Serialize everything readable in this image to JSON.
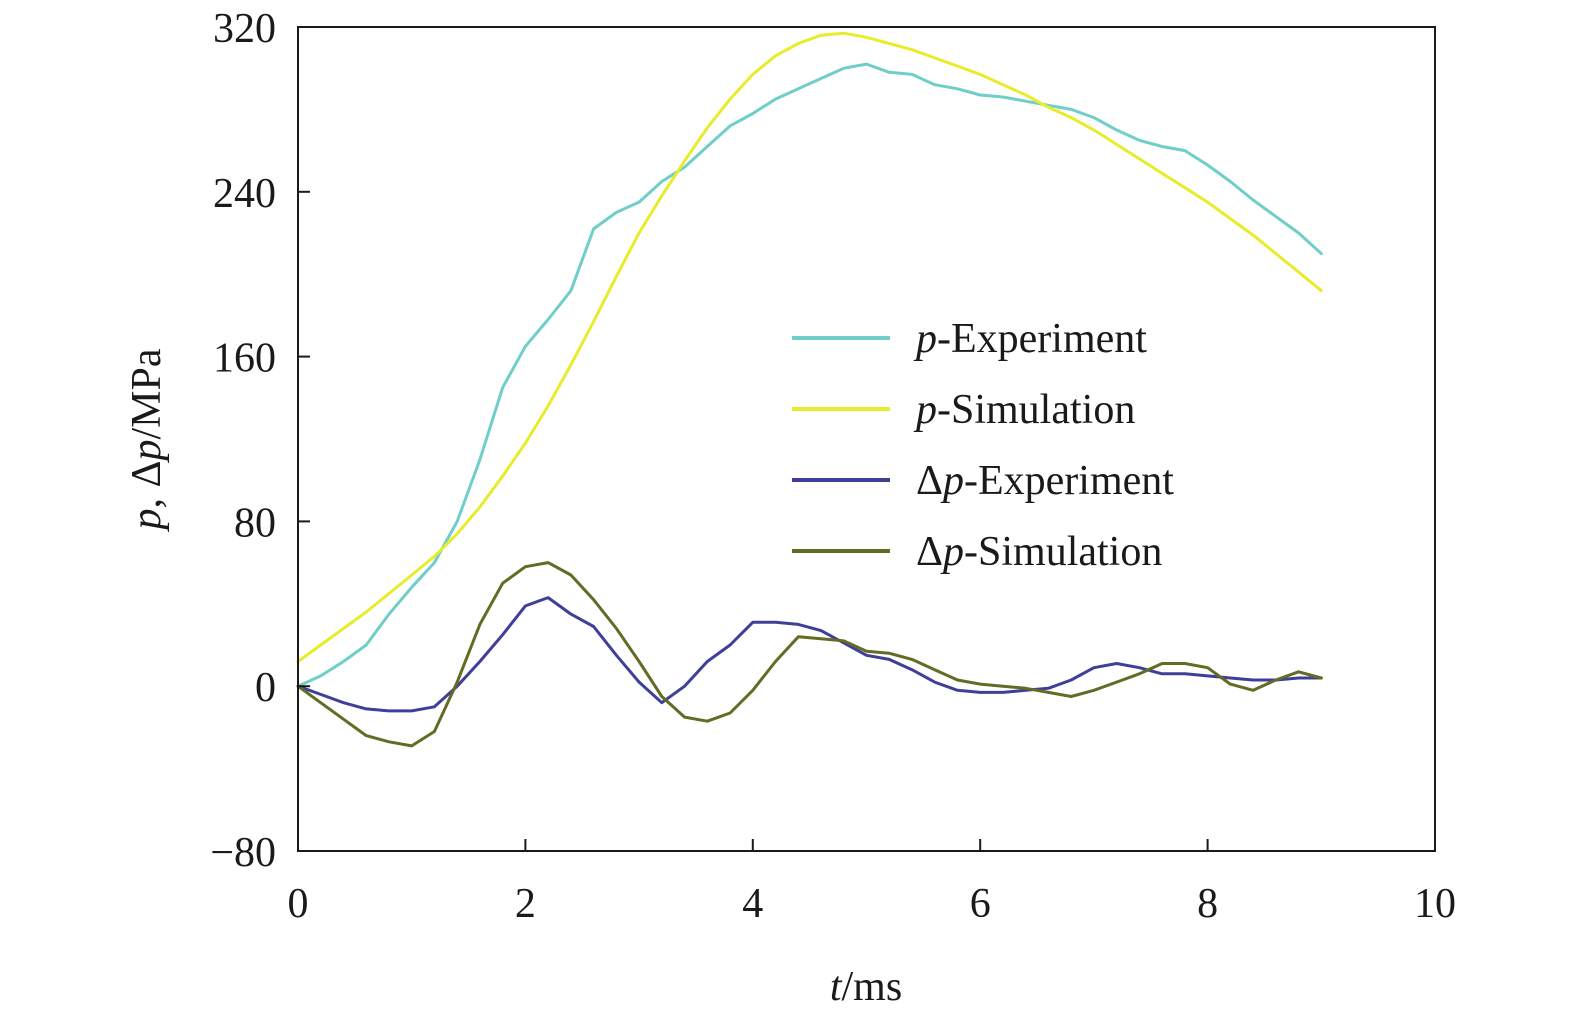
{
  "chart_data": {
    "type": "line",
    "xlabel": {
      "italic": "t",
      "rest": "/ms"
    },
    "ylabel": {
      "i1": "p",
      "t1": ", Δ",
      "i2": "p",
      "t2": "/MPa"
    },
    "xlim": [
      0,
      10
    ],
    "ylim": [
      -80,
      320
    ],
    "xticks": [
      "0",
      "2",
      "4",
      "6",
      "8",
      "10"
    ],
    "yticks": [
      "−80",
      "0",
      "80",
      "160",
      "240",
      "320"
    ],
    "xtick_values": [
      0,
      2,
      4,
      6,
      8,
      10
    ],
    "ytick_values": [
      -80,
      0,
      80,
      160,
      240,
      320
    ],
    "grid": false,
    "legend_position": "center-right",
    "series": [
      {
        "name": "p-Experiment",
        "legend_prefix": "",
        "legend_italic": "p",
        "legend_suffix": "-Experiment",
        "color": "#6fcfc8",
        "x": [
          0,
          0.2,
          0.4,
          0.6,
          0.8,
          1.0,
          1.2,
          1.4,
          1.6,
          1.8,
          2.0,
          2.2,
          2.4,
          2.6,
          2.8,
          3.0,
          3.2,
          3.4,
          3.6,
          3.8,
          4.0,
          4.2,
          4.4,
          4.6,
          4.8,
          5.0,
          5.2,
          5.4,
          5.6,
          5.8,
          6.0,
          6.2,
          6.4,
          6.6,
          6.8,
          7.0,
          7.2,
          7.4,
          7.6,
          7.8,
          8.0,
          8.2,
          8.4,
          8.6,
          8.8,
          9.0
        ],
        "y": [
          0,
          5,
          12,
          20,
          35,
          48,
          60,
          80,
          110,
          145,
          165,
          178,
          192,
          222,
          230,
          235,
          245,
          252,
          262,
          272,
          278,
          285,
          290,
          295,
          300,
          302,
          298,
          297,
          292,
          290,
          287,
          286,
          284,
          282,
          280,
          276,
          270,
          265,
          262,
          260,
          253,
          245,
          236,
          228,
          220,
          210
        ]
      },
      {
        "name": "p-Simulation",
        "legend_prefix": "",
        "legend_italic": "p",
        "legend_suffix": "-Simulation",
        "color": "#e8ec2a",
        "x": [
          0,
          0.2,
          0.4,
          0.6,
          0.8,
          1.0,
          1.2,
          1.4,
          1.6,
          1.8,
          2.0,
          2.2,
          2.4,
          2.6,
          2.8,
          3.0,
          3.2,
          3.4,
          3.6,
          3.8,
          4.0,
          4.2,
          4.4,
          4.6,
          4.8,
          5.0,
          5.2,
          5.4,
          5.6,
          5.8,
          6.0,
          6.2,
          6.4,
          6.6,
          6.8,
          7.0,
          7.2,
          7.4,
          7.6,
          7.8,
          8.0,
          8.2,
          8.4,
          8.6,
          8.8,
          9.0
        ],
        "y": [
          12,
          20,
          28,
          36,
          45,
          54,
          63,
          74,
          87,
          102,
          118,
          136,
          156,
          177,
          199,
          220,
          238,
          255,
          271,
          285,
          297,
          306,
          312,
          316,
          317,
          315,
          312,
          309,
          305,
          301,
          297,
          292,
          287,
          281,
          276,
          270,
          263,
          256,
          249,
          242,
          235,
          227,
          219,
          210,
          201,
          192
        ]
      },
      {
        "name": "Δp-Experiment",
        "legend_prefix": "Δ",
        "legend_italic": "p",
        "legend_suffix": "-Experiment",
        "color": "#3f3f9a",
        "x": [
          0,
          0.2,
          0.4,
          0.6,
          0.8,
          1.0,
          1.2,
          1.4,
          1.6,
          1.8,
          2.0,
          2.2,
          2.4,
          2.6,
          2.8,
          3.0,
          3.2,
          3.4,
          3.6,
          3.8,
          4.0,
          4.2,
          4.4,
          4.6,
          4.8,
          5.0,
          5.2,
          5.4,
          5.6,
          5.8,
          6.0,
          6.2,
          6.4,
          6.6,
          6.8,
          7.0,
          7.2,
          7.4,
          7.6,
          7.8,
          8.0,
          8.2,
          8.4,
          8.6,
          8.8,
          9.0
        ],
        "y": [
          0,
          -4,
          -8,
          -11,
          -12,
          -12,
          -10,
          0,
          12,
          25,
          39,
          43,
          35,
          29,
          15,
          2,
          -8,
          0,
          12,
          20,
          31,
          31,
          30,
          27,
          21,
          15,
          13,
          8,
          2,
          -2,
          -3,
          -3,
          -2,
          -1,
          3,
          9,
          11,
          9,
          6,
          6,
          5,
          4,
          3,
          3,
          4,
          4
        ]
      },
      {
        "name": "Δp-Simulation",
        "legend_prefix": "Δ",
        "legend_italic": "p",
        "legend_suffix": "-Simulation",
        "color": "#636b25",
        "x": [
          0,
          0.2,
          0.4,
          0.6,
          0.8,
          1.0,
          1.2,
          1.4,
          1.6,
          1.8,
          2.0,
          2.2,
          2.4,
          2.6,
          2.8,
          3.0,
          3.2,
          3.4,
          3.6,
          3.8,
          4.0,
          4.2,
          4.4,
          4.6,
          4.8,
          5.0,
          5.2,
          5.4,
          5.6,
          5.8,
          6.0,
          6.2,
          6.4,
          6.6,
          6.8,
          7.0,
          7.2,
          7.4,
          7.6,
          7.8,
          8.0,
          8.2,
          8.4,
          8.6,
          8.8,
          9.0
        ],
        "y": [
          0,
          -8,
          -16,
          -24,
          -27,
          -29,
          -22,
          2,
          30,
          50,
          58,
          60,
          54,
          42,
          28,
          12,
          -5,
          -15,
          -17,
          -13,
          -2,
          12,
          24,
          23,
          22,
          17,
          16,
          13,
          8,
          3,
          1,
          0,
          -1,
          -3,
          -5,
          -2,
          2,
          6,
          11,
          11,
          9,
          1,
          -2,
          3,
          7,
          4
        ]
      }
    ]
  }
}
